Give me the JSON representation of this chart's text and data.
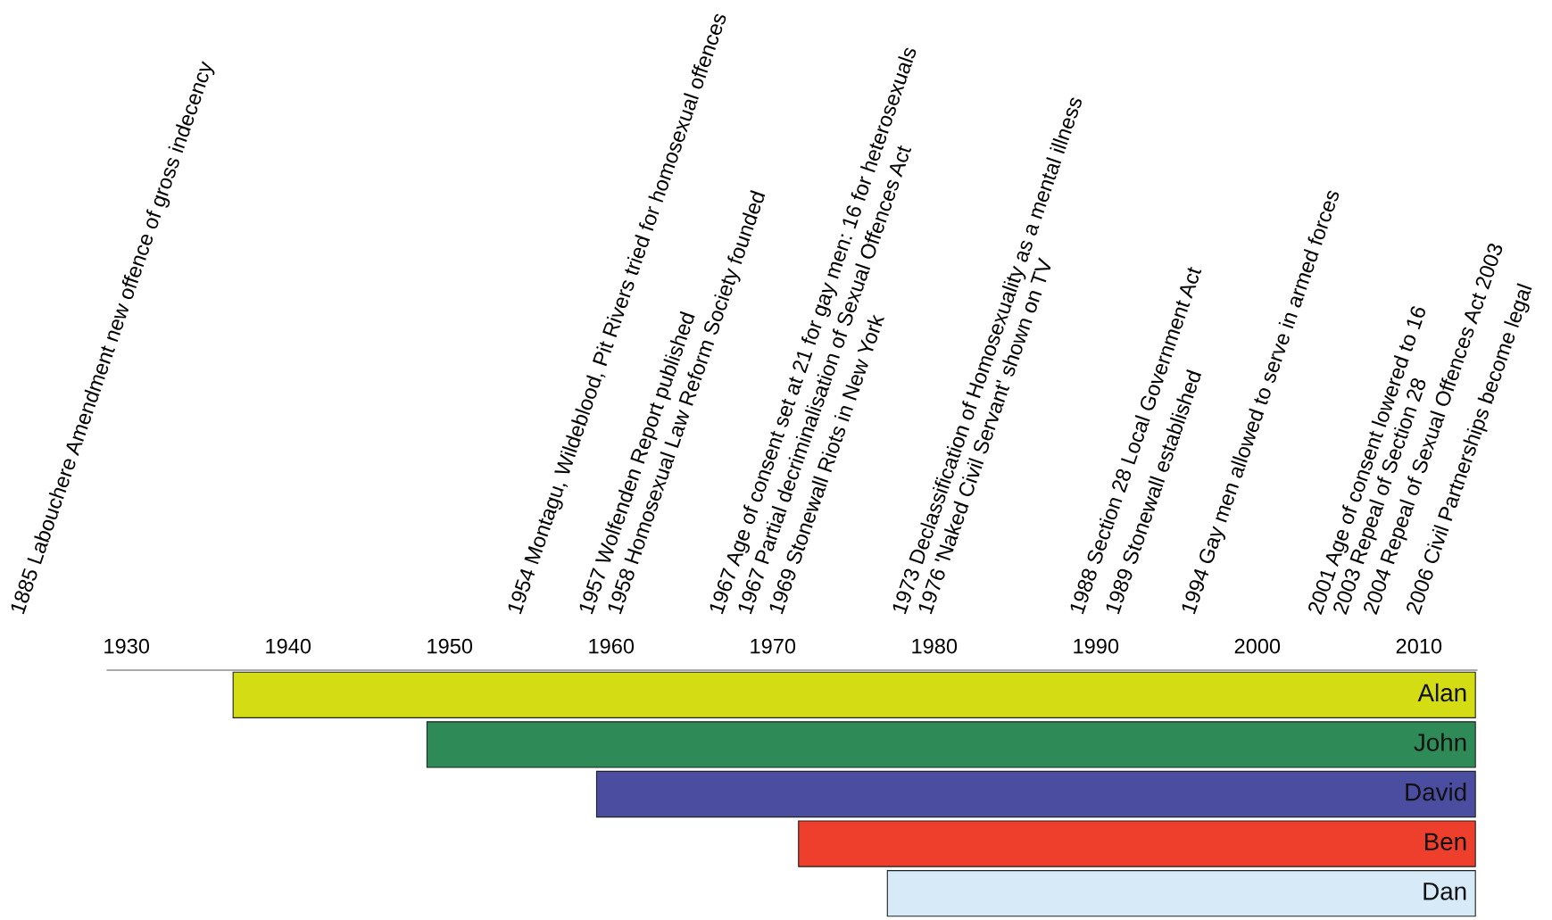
{
  "chart_data": {
    "type": "bar",
    "orientation": "horizontal",
    "categories": [
      "Alan",
      "John",
      "David",
      "Ben",
      "Dan"
    ],
    "base": [
      1936.6,
      1948.6,
      1959.1,
      1971.6,
      1977.1
    ],
    "values": [
      76.9,
      64.9,
      54.4,
      41.9,
      36.4
    ],
    "colors": [
      "#d4dc14",
      "#2e8b57",
      "#4b4da0",
      "#ee3e2c",
      "#d6eaf8"
    ],
    "xlim": [
      1928.8,
      2013.6
    ],
    "xticks": [
      1930,
      1940,
      1950,
      1960,
      1970,
      1980,
      1990,
      2000,
      2010
    ],
    "grid": false,
    "legend": false,
    "annotations": [
      "1885 Labouchere Amendment new offence of gross indecency",
      "1954 Montagu, Wildeblood, Pit Rivers tried for homosexual offences",
      "1957 Wolfenden Report published",
      "1958 Homosexual Law Reform Society founded",
      "1967 Age of consent set at 21 for gay men: 16 for heterosexuals",
      "1967 Partial decriminalisation of Sexual Offences Act",
      "1969 Stonewall Riots in New York",
      "1973 Declassification of Homosexuality as a mental illness",
      "1976 'Naked Civil Servant' shown on TV",
      "1988 Section 28 Local Government Act",
      "1989 Stonewall established",
      "1994 Gay men allowed to serve in armed forces",
      "2001 Age of consent lowered to 16",
      "2003 Repeal of Section 28",
      "2004 Repeal of Sexual Offences Act 2003",
      "2006 Civil Partnerships become legal"
    ]
  }
}
